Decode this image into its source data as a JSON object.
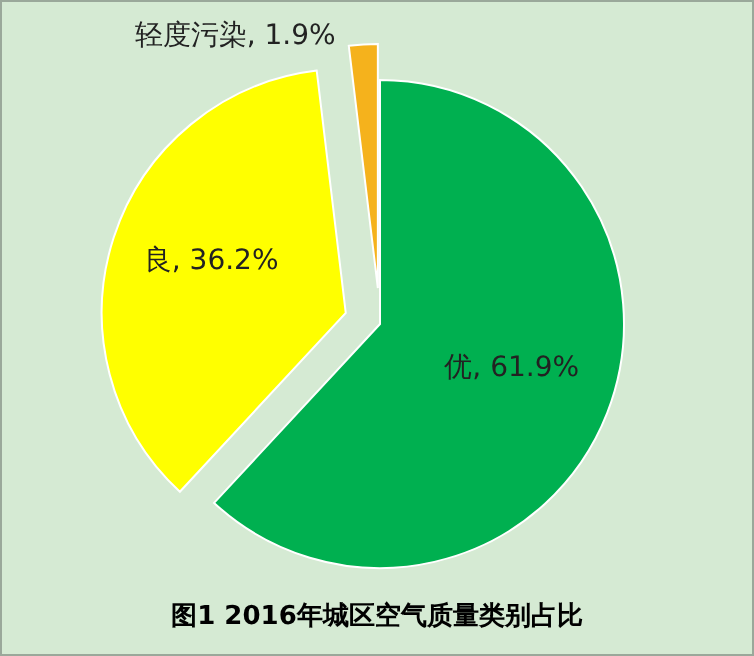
{
  "chart_data": {
    "type": "pie",
    "title": "图1 2016年城区空气质量类别占比",
    "categories": [
      "优",
      "良",
      "轻度污染"
    ],
    "values": [
      61.9,
      36.2,
      1.9
    ],
    "value_labels": [
      "61.9%",
      "36.2%",
      "1.9%"
    ],
    "colors": [
      "#00b050",
      "#ffff00",
      "#f5b21c"
    ]
  }
}
